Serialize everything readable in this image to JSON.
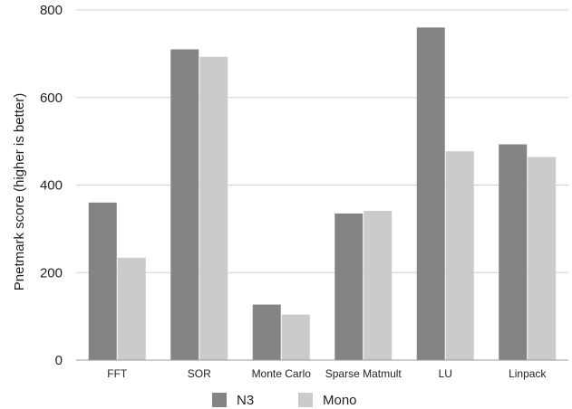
{
  "chart_data": {
    "type": "bar",
    "title": "",
    "xlabel": "",
    "ylabel": "Pnetmark score (higher is better)",
    "ylim": [
      0,
      800
    ],
    "yticks": [
      0,
      200,
      400,
      600,
      800
    ],
    "grid": true,
    "legend_position": "bottom",
    "categories": [
      "FFT",
      "SOR",
      "Monte Carlo",
      "Sparse Matmult",
      "LU",
      "Linpack"
    ],
    "series": [
      {
        "name": "N3",
        "color": "#848484",
        "values": [
          360,
          710,
          127,
          335,
          760,
          493
        ]
      },
      {
        "name": "Mono",
        "color": "#cbcbcb",
        "values": [
          234,
          693,
          104,
          341,
          477,
          464
        ]
      }
    ]
  }
}
